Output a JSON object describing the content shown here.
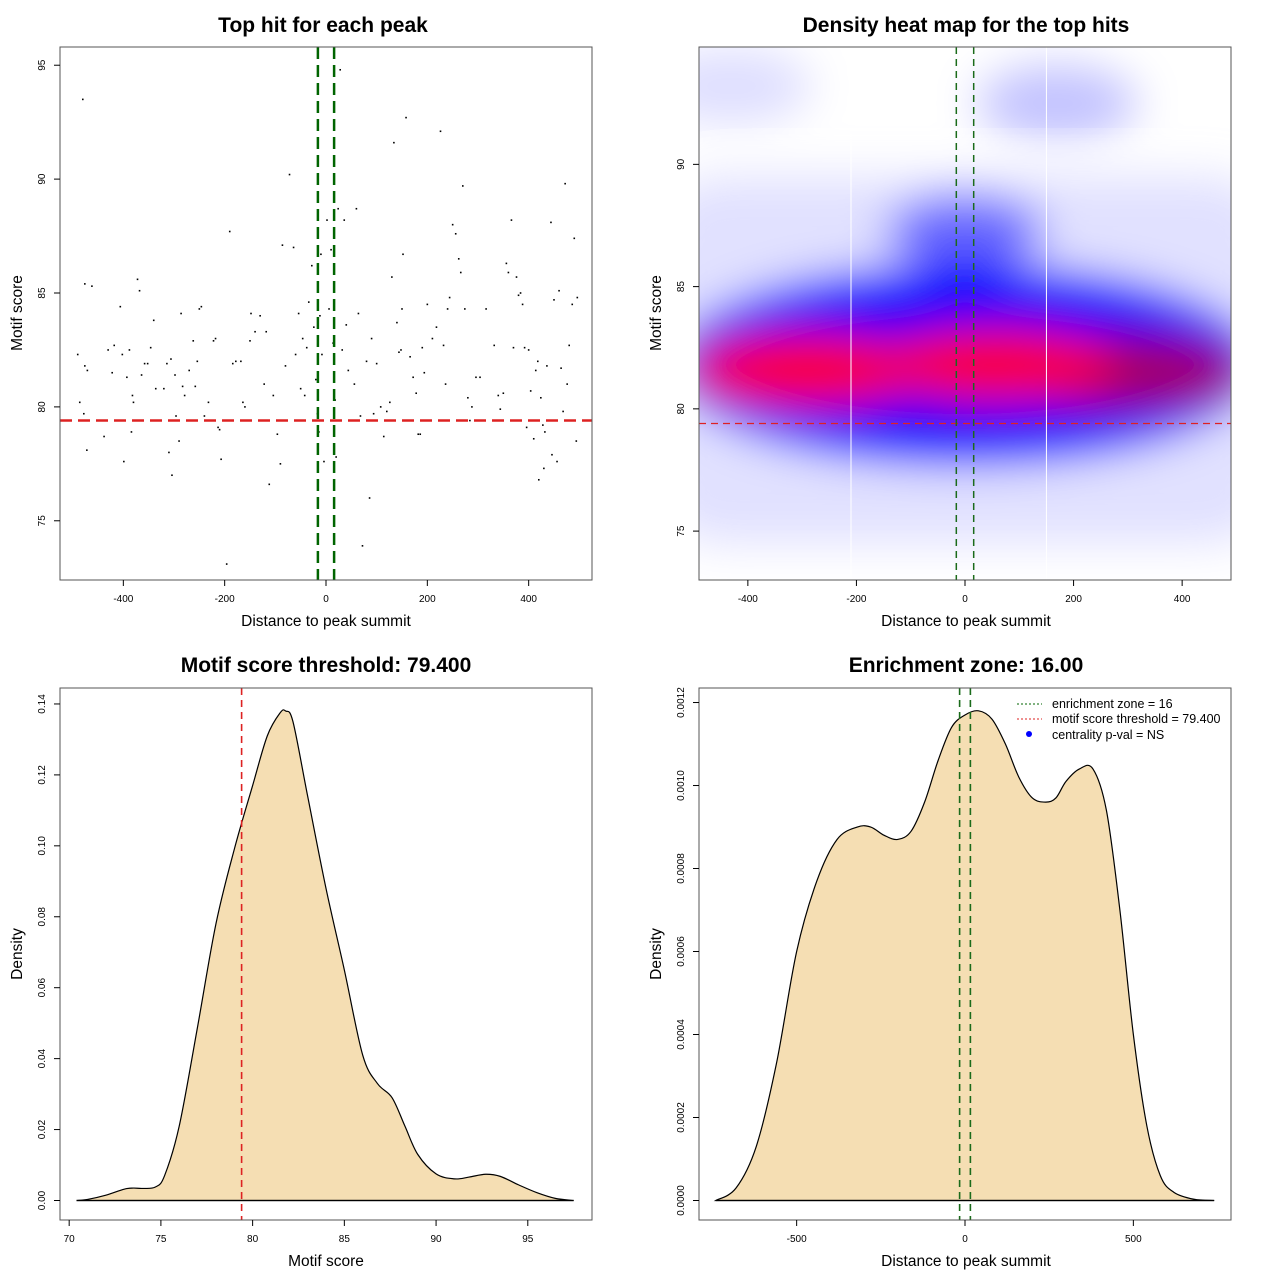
{
  "colors": {
    "threshold_line": "#dd2222",
    "zone_line": "#006400",
    "density_fill": "#f5deb3",
    "heat_low": "#ffffff",
    "heat_mid": "#0000ff",
    "heat_high": "#ff0000",
    "legend_dot": "#0000ff"
  },
  "chart_data": [
    {
      "id": "scatter",
      "type": "scatter",
      "title": "Top hit for each peak",
      "xlabel": "Distance to peak summit",
      "ylabel": "Motif score",
      "xlim": [
        -525,
        525
      ],
      "ylim": [
        72.4,
        95.8
      ],
      "xticks": [
        -400,
        -200,
        0,
        200,
        400
      ],
      "yticks": [
        75,
        80,
        85,
        90,
        95
      ],
      "threshold": 79.4,
      "zone": [
        -16,
        16
      ],
      "points": [
        [
          -480,
          93.5
        ],
        [
          -476,
          85.4
        ],
        [
          -462,
          85.3
        ],
        [
          -490,
          82.3
        ],
        [
          -476,
          81.8
        ],
        [
          -471,
          81.6
        ],
        [
          -486,
          80.2
        ],
        [
          -478,
          79.7
        ],
        [
          -472,
          78.1
        ],
        [
          -438,
          78.7
        ],
        [
          -430,
          82.5
        ],
        [
          -422,
          81.5
        ],
        [
          -418,
          82.7
        ],
        [
          -406,
          84.4
        ],
        [
          -402,
          82.3
        ],
        [
          -399,
          77.6
        ],
        [
          -393,
          81.3
        ],
        [
          -388,
          82.5
        ],
        [
          -384,
          78.9
        ],
        [
          -382,
          80.5
        ],
        [
          -380,
          80.2
        ],
        [
          -372,
          85.6
        ],
        [
          -368,
          85.1
        ],
        [
          -364,
          81.4
        ],
        [
          -358,
          81.9
        ],
        [
          -352,
          81.9
        ],
        [
          -346,
          82.6
        ],
        [
          -340,
          83.8
        ],
        [
          -336,
          80.8
        ],
        [
          -320,
          80.8
        ],
        [
          -314,
          81.9
        ],
        [
          -310,
          78.0
        ],
        [
          -306,
          82.1
        ],
        [
          -304,
          77.0
        ],
        [
          -298,
          81.4
        ],
        [
          -296,
          79.6
        ],
        [
          -290,
          78.5
        ],
        [
          -286,
          84.1
        ],
        [
          -283,
          80.9
        ],
        [
          -279,
          80.5
        ],
        [
          -270,
          81.6
        ],
        [
          -262,
          82.9
        ],
        [
          -258,
          80.9
        ],
        [
          -254,
          82.0
        ],
        [
          -250,
          84.3
        ],
        [
          -246,
          84.4
        ],
        [
          -240,
          79.6
        ],
        [
          -232,
          80.2
        ],
        [
          -222,
          82.9
        ],
        [
          -218,
          83.0
        ],
        [
          -213,
          79.1
        ],
        [
          -210,
          79.0
        ],
        [
          -207,
          77.7
        ],
        [
          -196,
          73.1
        ],
        [
          -190,
          87.7
        ],
        [
          -184,
          81.9
        ],
        [
          -178,
          82.0
        ],
        [
          -168,
          82.0
        ],
        [
          -164,
          80.2
        ],
        [
          -160,
          80.0
        ],
        [
          -150,
          82.9
        ],
        [
          -148,
          84.1
        ],
        [
          -140,
          83.3
        ],
        [
          -130,
          84.0
        ],
        [
          -122,
          81.0
        ],
        [
          -118,
          83.3
        ],
        [
          -112,
          76.6
        ],
        [
          -104,
          80.5
        ],
        [
          -96,
          78.8
        ],
        [
          -90,
          77.5
        ],
        [
          -86,
          87.1
        ],
        [
          -80,
          81.8
        ],
        [
          -72,
          90.2
        ],
        [
          -64,
          87.0
        ],
        [
          -60,
          82.3
        ],
        [
          -54,
          84.1
        ],
        [
          -50,
          80.8
        ],
        [
          -46,
          83.0
        ],
        [
          -42,
          80.5
        ],
        [
          -38,
          82.6
        ],
        [
          -34,
          84.6
        ],
        [
          -28,
          86.2
        ],
        [
          -24,
          83.5
        ],
        [
          -20,
          81.2
        ],
        [
          -17,
          79.7
        ],
        [
          -14,
          78.9
        ],
        [
          -12,
          84.0
        ],
        [
          -10,
          86.7
        ],
        [
          -8,
          82.3
        ],
        [
          -4,
          77.6
        ],
        [
          2,
          88.2
        ],
        [
          6,
          84.3
        ],
        [
          10,
          86.9
        ],
        [
          14,
          82.8
        ],
        [
          18,
          80.3
        ],
        [
          20,
          77.8
        ],
        [
          24,
          88.7
        ],
        [
          28,
          94.8
        ],
        [
          32,
          82.5
        ],
        [
          36,
          88.2
        ],
        [
          40,
          83.6
        ],
        [
          44,
          81.6
        ],
        [
          56,
          81.0
        ],
        [
          60,
          88.7
        ],
        [
          64,
          84.1
        ],
        [
          68,
          79.6
        ],
        [
          72,
          73.9
        ],
        [
          80,
          82.0
        ],
        [
          86,
          76.0
        ],
        [
          90,
          83.0
        ],
        [
          94,
          79.7
        ],
        [
          100,
          81.9
        ],
        [
          108,
          80.0
        ],
        [
          114,
          78.7
        ],
        [
          120,
          79.8
        ],
        [
          126,
          80.2
        ],
        [
          130,
          85.7
        ],
        [
          134,
          91.6
        ],
        [
          140,
          83.7
        ],
        [
          144,
          82.4
        ],
        [
          148,
          82.5
        ],
        [
          150,
          84.3
        ],
        [
          152,
          86.7
        ],
        [
          158,
          92.7
        ],
        [
          166,
          82.2
        ],
        [
          172,
          81.3
        ],
        [
          178,
          80.6
        ],
        [
          182,
          78.8
        ],
        [
          186,
          78.8
        ],
        [
          190,
          82.6
        ],
        [
          194,
          81.5
        ],
        [
          200,
          84.5
        ],
        [
          210,
          83.0
        ],
        [
          218,
          83.5
        ],
        [
          226,
          92.1
        ],
        [
          232,
          82.7
        ],
        [
          236,
          81.0
        ],
        [
          240,
          84.3
        ],
        [
          244,
          84.8
        ],
        [
          250,
          88.0
        ],
        [
          256,
          87.6
        ],
        [
          262,
          86.5
        ],
        [
          266,
          85.9
        ],
        [
          270,
          89.7
        ],
        [
          274,
          84.3
        ],
        [
          280,
          80.4
        ],
        [
          284,
          79.4
        ],
        [
          288,
          80.0
        ],
        [
          296,
          81.3
        ],
        [
          304,
          81.3
        ],
        [
          316,
          84.3
        ],
        [
          332,
          82.7
        ],
        [
          340,
          80.5
        ],
        [
          344,
          79.9
        ],
        [
          350,
          80.6
        ],
        [
          356,
          86.3
        ],
        [
          360,
          85.9
        ],
        [
          366,
          88.2
        ],
        [
          370,
          82.6
        ],
        [
          376,
          85.7
        ],
        [
          380,
          84.9
        ],
        [
          384,
          85.0
        ],
        [
          388,
          84.5
        ],
        [
          392,
          82.6
        ],
        [
          396,
          79.1
        ],
        [
          400,
          82.5
        ],
        [
          404,
          80.7
        ],
        [
          410,
          78.6
        ],
        [
          414,
          81.6
        ],
        [
          418,
          82.0
        ],
        [
          420,
          76.8
        ],
        [
          424,
          80.4
        ],
        [
          428,
          79.2
        ],
        [
          432,
          78.9
        ],
        [
          436,
          81.8
        ],
        [
          440,
          79.4
        ],
        [
          446,
          77.9
        ],
        [
          450,
          84.7
        ],
        [
          456,
          77.6
        ],
        [
          460,
          85.1
        ],
        [
          464,
          81.7
        ],
        [
          468,
          79.8
        ],
        [
          472,
          89.8
        ],
        [
          476,
          81.0
        ],
        [
          480,
          82.7
        ],
        [
          486,
          84.5
        ],
        [
          490,
          87.4
        ],
        [
          494,
          78.5
        ],
        [
          496,
          84.8
        ],
        [
          444,
          88.1
        ],
        [
          430,
          77.3
        ]
      ]
    },
    {
      "id": "heatmap",
      "type": "heatmap",
      "title": "Density heat map for the top hits",
      "xlabel": "Distance to peak summit",
      "ylabel": "Motif score",
      "xlim": [
        -490,
        490
      ],
      "ylim": [
        73.0,
        94.8
      ],
      "xticks": [
        -400,
        -200,
        0,
        200,
        400
      ],
      "yticks": [
        75,
        80,
        85,
        90
      ],
      "threshold": 79.4,
      "zone": [
        -16,
        16
      ],
      "white_separators_x": [
        -210,
        150
      ],
      "density_hotspots": [
        {
          "x": -290,
          "y": 81.6,
          "intensity": 1.0
        },
        {
          "x": 55,
          "y": 81.8,
          "intensity": 1.0
        },
        {
          "x": 300,
          "y": 81.5,
          "intensity": 0.65
        },
        {
          "x": 0,
          "y": 87.2,
          "intensity": 0.35
        },
        {
          "x": 170,
          "y": 92.5,
          "intensity": 0.15
        },
        {
          "x": -430,
          "y": 93.2,
          "intensity": 0.08
        }
      ]
    },
    {
      "id": "score-density",
      "type": "area",
      "title": "Motif score threshold: 79.400",
      "xlabel": "Motif score",
      "ylabel": "Density",
      "xlim": [
        69.5,
        98.5
      ],
      "ylim": [
        -0.0055,
        0.1445
      ],
      "xticks": [
        70,
        75,
        80,
        85,
        90,
        95
      ],
      "yticks": [
        "0.00",
        "0.02",
        "0.04",
        "0.06",
        "0.08",
        "0.10",
        "0.12",
        "0.14"
      ],
      "threshold": 79.4,
      "x": [
        70.4,
        71,
        72,
        73,
        73.5,
        74,
        74.7,
        75.2,
        76,
        77,
        78,
        79,
        80,
        80.8,
        81.5,
        81.8,
        82.2,
        83,
        84,
        85,
        86,
        86.8,
        87.6,
        88.3,
        89,
        90,
        91,
        91.8,
        92.7,
        93.5,
        94.5,
        95.5,
        96.5,
        97.5
      ],
      "y": [
        0.0,
        0.0003,
        0.0015,
        0.0032,
        0.0035,
        0.0034,
        0.0038,
        0.007,
        0.021,
        0.049,
        0.078,
        0.099,
        0.117,
        0.131,
        0.1375,
        0.138,
        0.135,
        0.114,
        0.088,
        0.065,
        0.041,
        0.033,
        0.029,
        0.021,
        0.013,
        0.0075,
        0.0061,
        0.0066,
        0.0074,
        0.0068,
        0.0044,
        0.0022,
        0.0006,
        0.0
      ]
    },
    {
      "id": "distance-density",
      "type": "area",
      "title": "Enrichment zone: 16.00",
      "xlabel": "Distance to peak summit",
      "ylabel": "Density",
      "xlim": [
        -790,
        790
      ],
      "ylim": [
        -4.7e-05,
        0.001235
      ],
      "xticks": [
        -500,
        0,
        500
      ],
      "yticks": [
        "0.0000",
        "0.0002",
        "0.0004",
        "0.0006",
        "0.0008",
        "0.0010",
        "0.0012"
      ],
      "zone": [
        -16,
        16
      ],
      "x": [
        -740,
        -680,
        -620,
        -560,
        -500,
        -440,
        -380,
        -320,
        -280,
        -240,
        -200,
        -160,
        -120,
        -80,
        -40,
        0,
        40,
        80,
        120,
        160,
        200,
        240,
        270,
        300,
        340,
        380,
        420,
        460,
        500,
        540,
        580,
        620,
        680,
        740
      ],
      "y": [
        0.0,
        3e-05,
        0.00013,
        0.00033,
        0.0006,
        0.00077,
        0.00087,
        0.0009,
        0.0009,
        0.00088,
        0.00087,
        0.00089,
        0.00096,
        0.00106,
        0.00114,
        0.00117,
        0.00118,
        0.00116,
        0.0011,
        0.00102,
        0.00097,
        0.00096,
        0.00097,
        0.00101,
        0.00104,
        0.00104,
        0.00094,
        0.0007,
        0.0004,
        0.00018,
        6e-05,
        2e-05,
        3e-06,
        0.0
      ],
      "legend": {
        "position": "top-right",
        "items": [
          {
            "label": "enrichment zone = 16",
            "style": "dotted-line",
            "color": "#006400"
          },
          {
            "label": "motif score threshold = 79.400",
            "style": "dotted-line",
            "color": "#dd2222"
          },
          {
            "label": "centrality p-val = NS",
            "style": "dot",
            "color": "#0000ff"
          }
        ]
      }
    }
  ]
}
